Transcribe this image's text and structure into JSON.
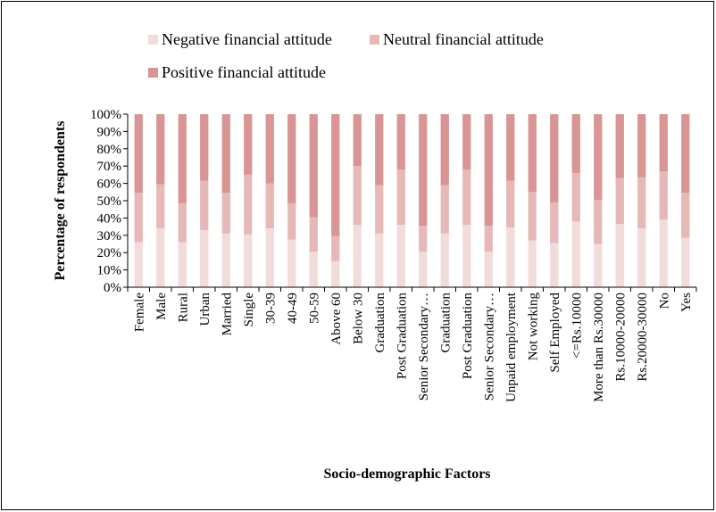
{
  "chart_data": {
    "type": "bar",
    "stacked": true,
    "title": "",
    "xlabel": "Socio-demographic Factors",
    "ylabel": "Percentage of respondents",
    "ylim": [
      0,
      100
    ],
    "yticks": [
      "0%",
      "10%",
      "20%",
      "30%",
      "40%",
      "50%",
      "60%",
      "70%",
      "80%",
      "90%",
      "100%"
    ],
    "grid": false,
    "legend_position": "top",
    "categories": [
      "Female",
      "Male",
      "Rural",
      "Urban",
      "Married",
      "Single",
      "30-39",
      "40-49",
      "50-59",
      "Above 60",
      "Below 30",
      "Graduation",
      "Post Graduation",
      "Senior Secondary…",
      "Graduation",
      "Post Graduation",
      "Senior Secondary…",
      "Unpaid employment",
      "Not working",
      "Self Employed",
      "<=Rs.10000",
      "More than Rs.30000",
      "Rs.10000-20000",
      "Rs.20000-30000",
      "No",
      "Yes"
    ],
    "series": [
      {
        "name": "Negative financial attitude",
        "color": "#f2dcdb",
        "values": [
          26,
          34,
          26,
          33,
          31,
          30.5,
          34,
          27.5,
          20.5,
          15,
          36,
          31,
          36,
          20.5,
          31,
          36,
          20.5,
          34.5,
          27,
          25.5,
          38,
          25,
          36.5,
          34,
          39,
          28.5
        ]
      },
      {
        "name": "Neutral financial attitude",
        "color": "#e6b9b8",
        "values": [
          28.5,
          25.5,
          22.5,
          28.5,
          23.5,
          34.5,
          26,
          21,
          20,
          14.5,
          34,
          28,
          32,
          15,
          28,
          32,
          15,
          27,
          28,
          23.5,
          28,
          25.5,
          26.5,
          29.5,
          28,
          26
        ]
      },
      {
        "name": "Positive financial attitude",
        "color": "#d99594",
        "values": [
          45.5,
          40.5,
          51.5,
          38.5,
          45.5,
          35,
          40,
          51.5,
          59.5,
          70.5,
          30,
          41,
          32,
          64.5,
          41,
          32,
          64.5,
          38.5,
          45,
          51,
          34,
          49.5,
          37,
          36.5,
          33,
          45.5
        ]
      }
    ]
  }
}
